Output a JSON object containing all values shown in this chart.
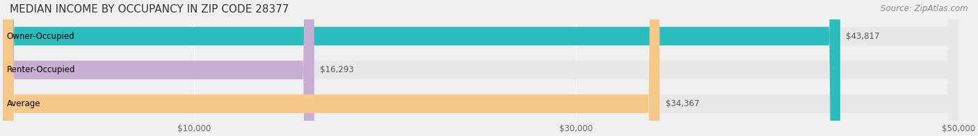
{
  "title": "MEDIAN INCOME BY OCCUPANCY IN ZIP CODE 28377",
  "source": "Source: ZipAtlas.com",
  "categories": [
    "Owner-Occupied",
    "Renter-Occupied",
    "Average"
  ],
  "values": [
    43817,
    16293,
    34367
  ],
  "bar_colors": [
    "#2bbcbe",
    "#c9aed4",
    "#f5c888"
  ],
  "bar_labels": [
    "$43,817",
    "$16,293",
    "$34,367"
  ],
  "xlim": [
    0,
    50000
  ],
  "xticks": [
    10000,
    30000,
    50000
  ],
  "xtick_labels": [
    "$10,000",
    "$30,000",
    "$50,000"
  ],
  "background_color": "#f0f0f0",
  "bar_bg_color": "#e8e8e8",
  "title_fontsize": 11,
  "source_fontsize": 8.5,
  "label_fontsize": 8.5,
  "tick_fontsize": 8.5,
  "bar_height": 0.55
}
